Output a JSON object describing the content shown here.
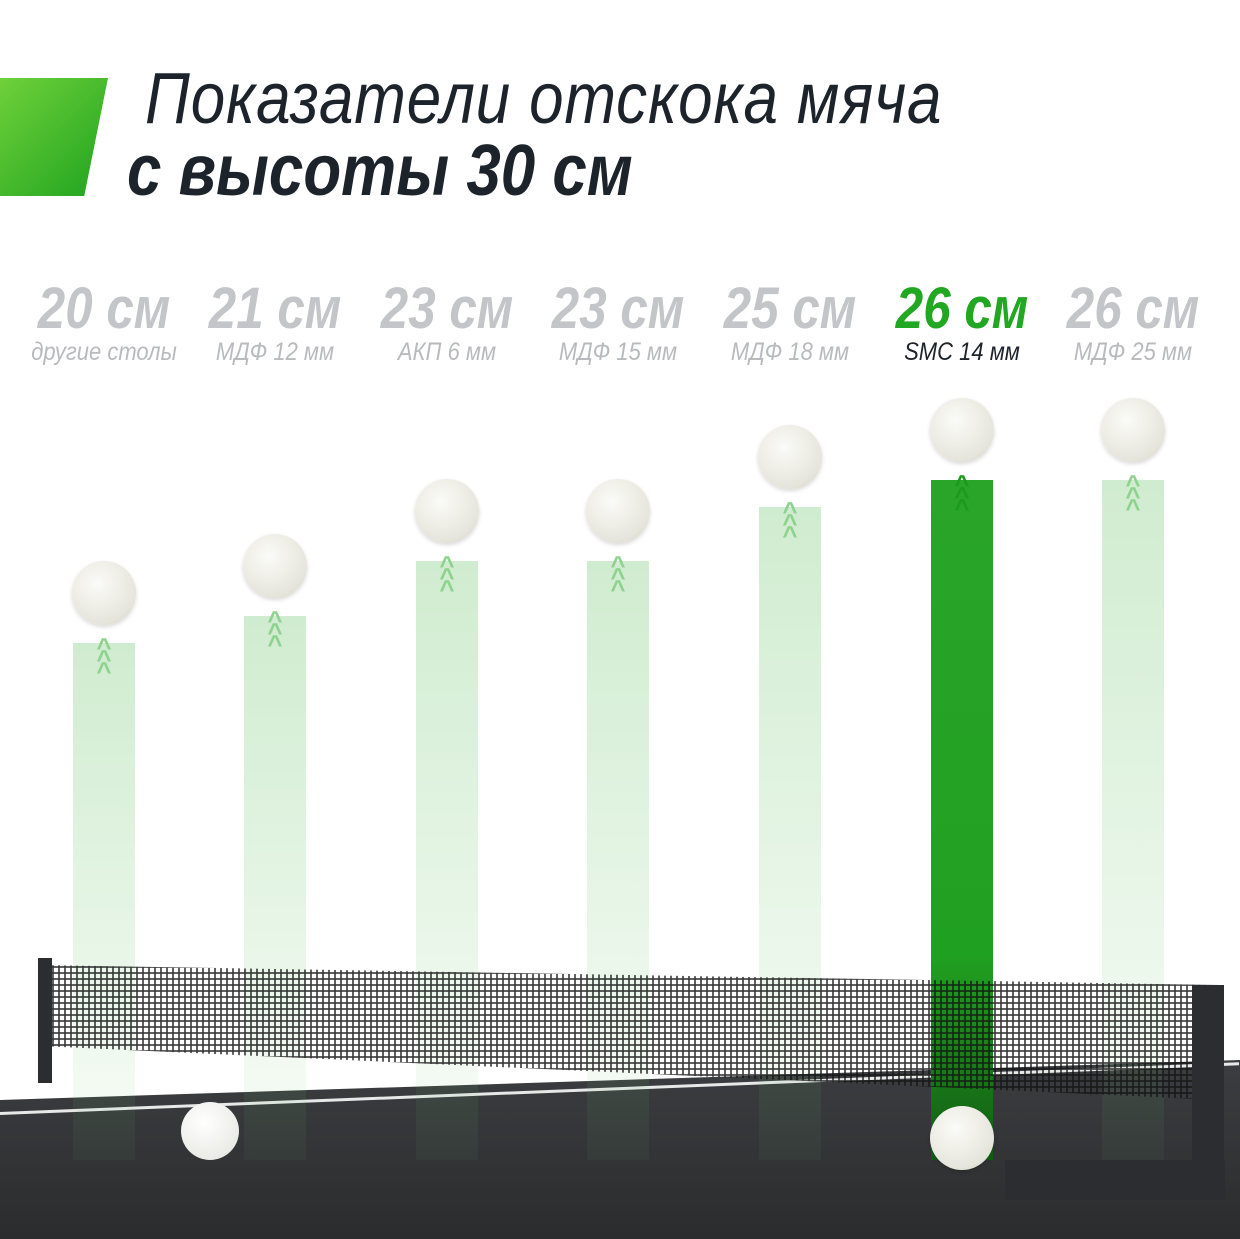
{
  "header": {
    "title_line1": "Показатели отскока мяча",
    "title_line2": "с высоты 30 см",
    "accent_color": "#22a722"
  },
  "chart_data": {
    "type": "bar",
    "title": "Показатели отскока мяча с высоты 30 см",
    "unit": "см",
    "categories": [
      "другие столы",
      "МДФ 12 мм",
      "АКП 6 мм",
      "МДФ 15 мм",
      "МДФ 18 мм",
      "SMC 14 мм",
      "МДФ 25 мм"
    ],
    "values": [
      20,
      21,
      23,
      23,
      25,
      26,
      26
    ],
    "value_labels": [
      "20 см",
      "21 см",
      "23 см",
      "23 см",
      "25 см",
      "26 см",
      "26 см"
    ],
    "highlighted": "SMC 14 мм",
    "highlight_color": "#22a722",
    "muted_color": "#c4c5c9"
  }
}
